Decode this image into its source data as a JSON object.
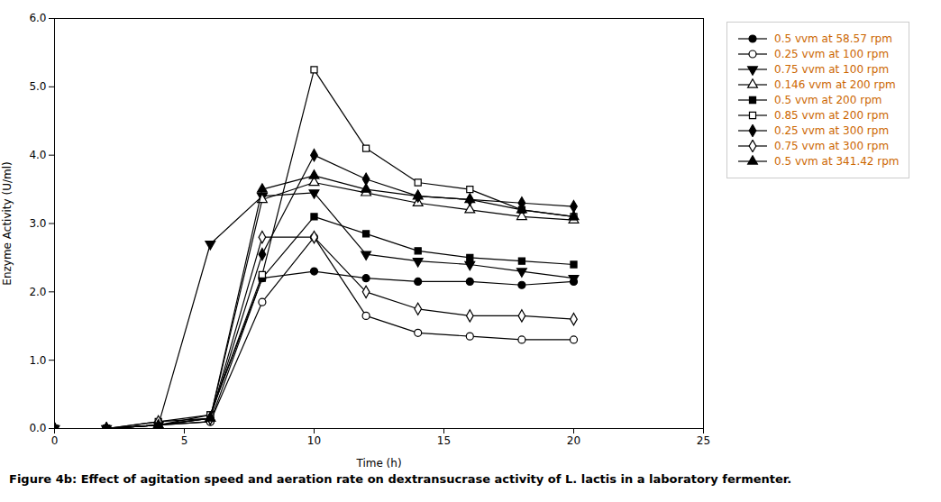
{
  "chart_data": {
    "type": "line",
    "caption": "Figure 4b: Effect of agitation speed and aeration rate on dextransucrase activity of L. lactis in a laboratory fermenter.",
    "x_label": "Time (h)",
    "y_label": "Enzyme Activity (U/ml)",
    "x": [
      0,
      2,
      4,
      6,
      8,
      10,
      12,
      14,
      16,
      18,
      20
    ],
    "series": [
      {
        "name": "0.5 vvm at 58.57 rpm",
        "color": "black",
        "marker": "circle",
        "line_style": "solid",
        "values": [
          0,
          0,
          0.05,
          0.1,
          2.2,
          2.3,
          2.2,
          2.15,
          2.15,
          2.1,
          2.15
        ]
      },
      {
        "name": "0.25 vvm at 100 rpm",
        "color": "black",
        "marker": "circle-open",
        "line_style": "solid",
        "values": [
          0,
          0,
          0.05,
          0.1,
          1.85,
          2.8,
          1.65,
          1.4,
          1.35,
          1.3,
          1.3
        ]
      },
      {
        "name": "0.75 vvm at 100 rpm",
        "color": "black",
        "marker": "triangle-down",
        "line_style": "solid",
        "values": [
          0,
          0,
          0.05,
          2.7,
          3.4,
          3.45,
          2.55,
          2.45,
          2.4,
          2.3,
          2.2
        ]
      },
      {
        "name": "0.146 vvm at 200 rpm",
        "color": "black",
        "marker": "triangle-open",
        "line_style": "solid",
        "values": [
          0,
          0,
          0.05,
          0.15,
          3.35,
          3.6,
          3.45,
          3.3,
          3.2,
          3.1,
          3.05
        ]
      },
      {
        "name": "0.5 vvm at 200 rpm",
        "color": "black",
        "marker": "square",
        "line_style": "solid",
        "values": [
          0,
          0,
          0.05,
          0.2,
          2.2,
          3.1,
          2.85,
          2.6,
          2.5,
          2.45,
          2.4
        ]
      },
      {
        "name": "0.85 vvm at 200 rpm",
        "color": "black",
        "marker": "square-open",
        "line_style": "solid",
        "values": [
          0,
          0,
          0.1,
          0.2,
          2.25,
          5.25,
          4.1,
          3.6,
          3.5,
          3.2,
          3.1
        ]
      },
      {
        "name": "0.25 vvm at 300 rpm",
        "color": "black",
        "marker": "diamond",
        "line_style": "solid",
        "values": [
          0,
          0,
          0.05,
          0.15,
          2.55,
          4.0,
          3.65,
          3.4,
          3.35,
          3.3,
          3.25
        ]
      },
      {
        "name": "0.75 vvm at 300 rpm",
        "color": "black",
        "marker": "diamond-open",
        "line_style": "solid",
        "values": [
          0,
          0,
          0.1,
          0.15,
          2.8,
          2.8,
          2.0,
          1.75,
          1.65,
          1.65,
          1.6
        ]
      },
      {
        "name": "0.5 vvm at 341.42 rpm",
        "color": "black",
        "marker": "triangle",
        "line_style": "solid",
        "values": [
          0,
          0,
          0.05,
          0.15,
          3.5,
          3.7,
          3.5,
          3.4,
          3.35,
          3.2,
          3.1
        ]
      }
    ],
    "xlim": [
      0,
      25
    ],
    "ylim": [
      0,
      6
    ],
    "xticks": [
      0,
      5,
      10,
      15,
      20,
      25
    ],
    "yticks": [
      0,
      1,
      2,
      3,
      4,
      5,
      6
    ],
    "grid": false,
    "legend": "right"
  }
}
